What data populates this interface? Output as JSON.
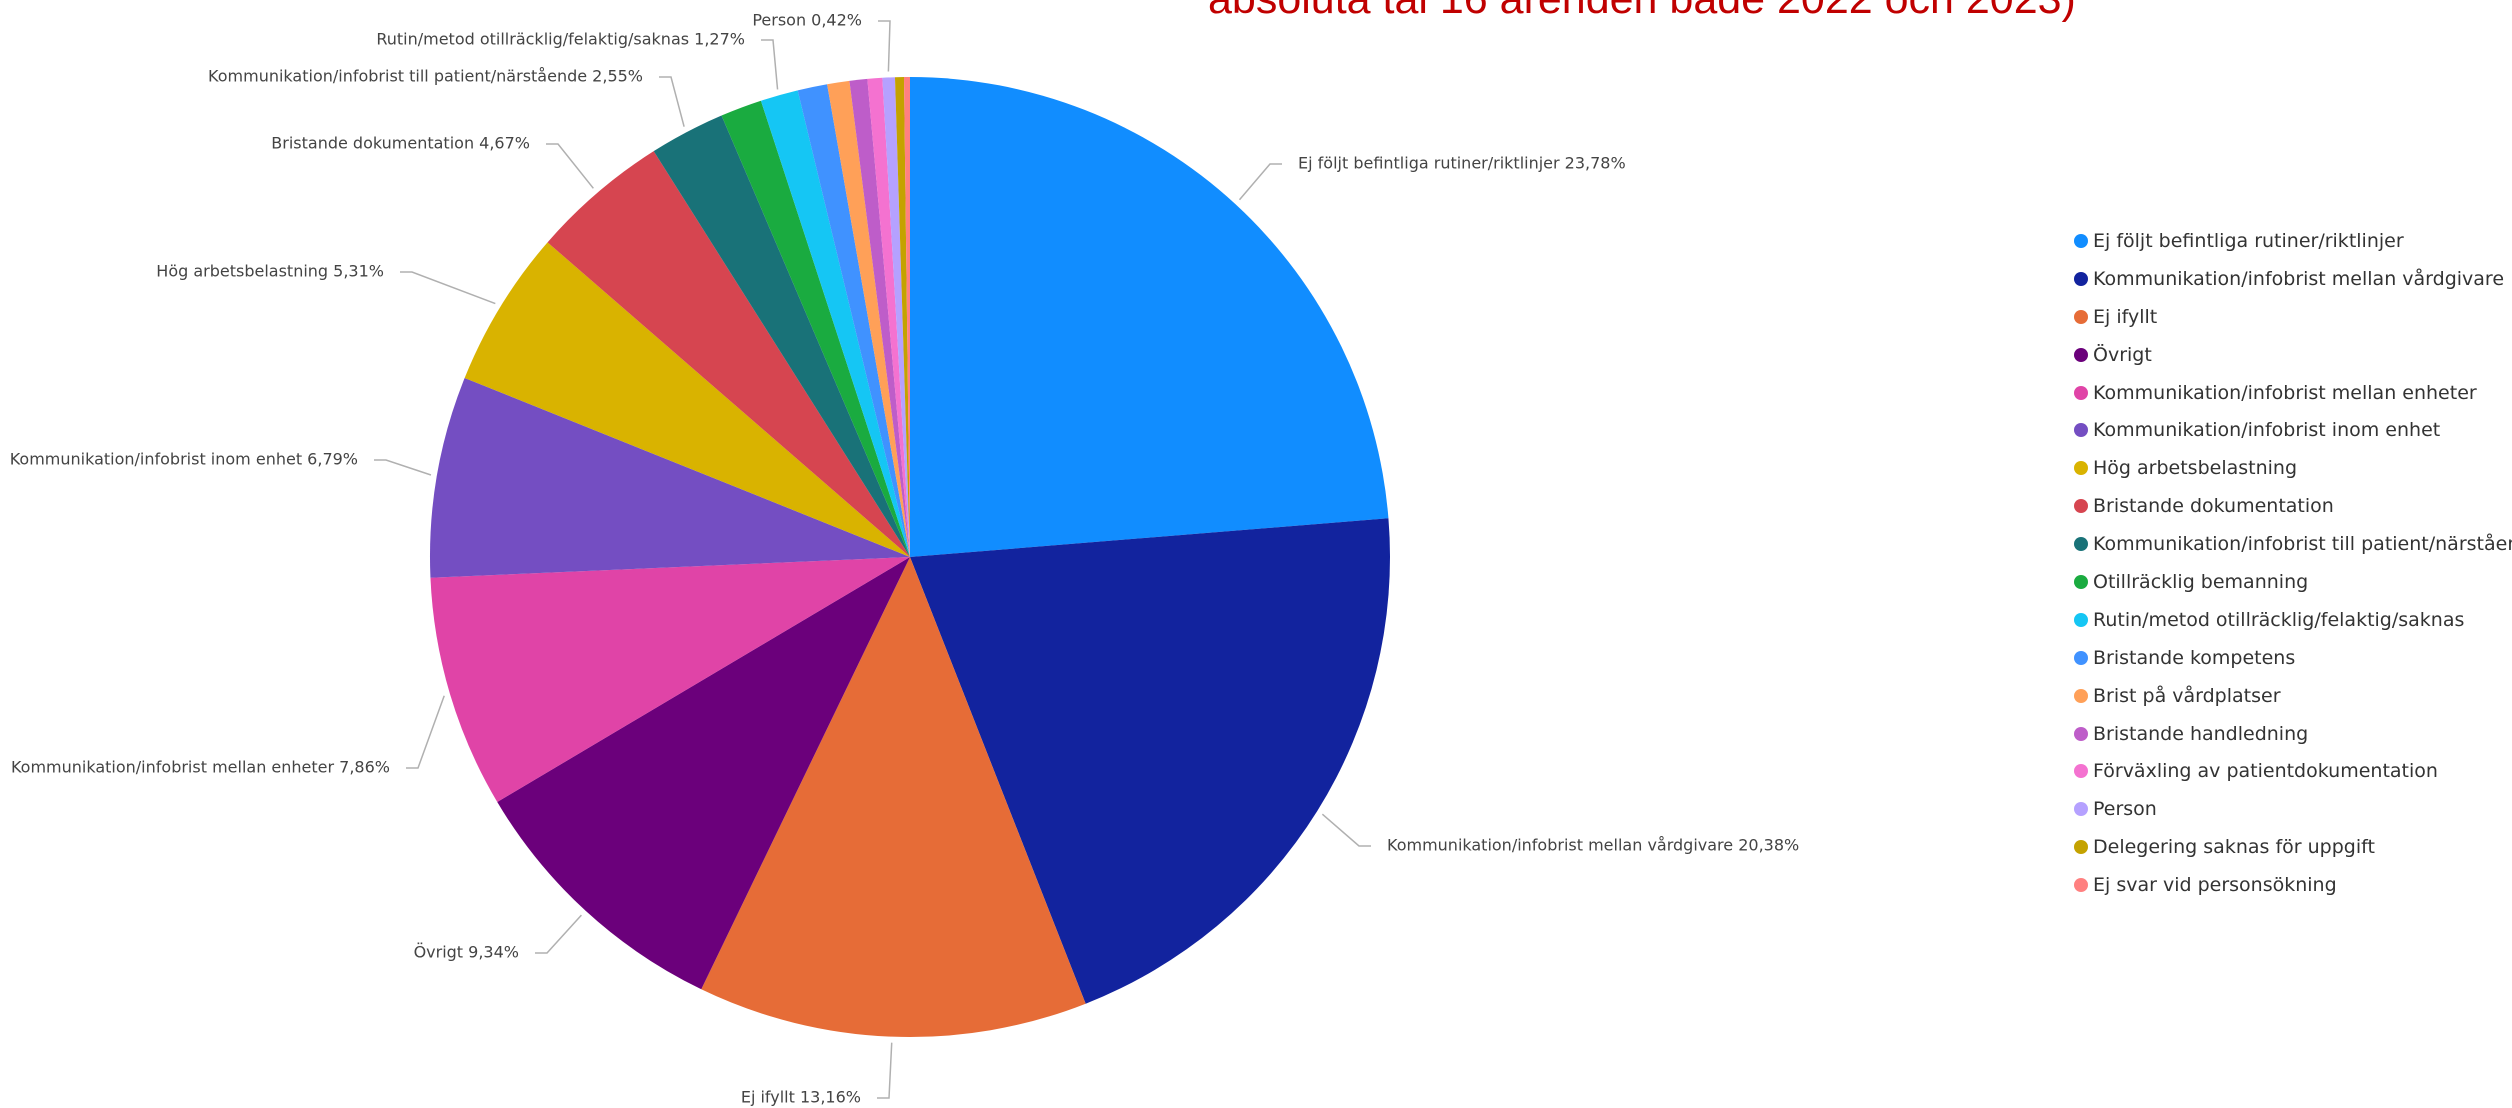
{
  "header_note": "absoluta tal 16 ärenden både 2022 och 2023)",
  "chart_data": {
    "type": "pie",
    "title": "",
    "start_angle_deg": 0,
    "direction": "clockwise",
    "legend_position": "right",
    "slices": [
      {
        "name": "Ej följt befintliga rutiner/riktlinjer",
        "value": 23.78,
        "label": "Ej följt befintliga rutiner/riktlinjer 23,78%",
        "color": "#118DFF",
        "show_label": true
      },
      {
        "name": "Kommunikation/infobrist mellan vårdgivare",
        "value": 20.38,
        "label": "Kommunikation/infobrist mellan vårdgivare 20,38%",
        "color": "#12239E",
        "show_label": true
      },
      {
        "name": "Ej ifyllt",
        "value": 13.16,
        "label": "Ej ifyllt 13,16%",
        "color": "#E66C37",
        "show_label": true
      },
      {
        "name": "Övrigt",
        "value": 9.34,
        "label": "Övrigt 9,34%",
        "color": "#6B007B",
        "show_label": true
      },
      {
        "name": "Kommunikation/infobrist mellan enheter",
        "value": 7.86,
        "label": "Kommunikation/infobrist mellan enheter 7,86%",
        "color": "#E044A7",
        "show_label": true
      },
      {
        "name": "Kommunikation/infobrist inom enhet",
        "value": 6.79,
        "label": "Kommunikation/infobrist inom enhet 6,79%",
        "color": "#744EC2",
        "show_label": true
      },
      {
        "name": "Hög arbetsbelastning",
        "value": 5.31,
        "label": "Hög arbetsbelastning 5,31%",
        "color": "#D9B300",
        "show_label": true
      },
      {
        "name": "Bristande dokumentation",
        "value": 4.67,
        "label": "Bristande dokumentation 4,67%",
        "color": "#D64550",
        "show_label": true
      },
      {
        "name": "Kommunikation/infobrist till patient/närstående",
        "value": 2.55,
        "label": "Kommunikation/infobrist till patient/närstående 2,55%",
        "color": "#197278",
        "show_label": true
      },
      {
        "name": "Otillräcklig bemanning",
        "value": 1.4,
        "label": "",
        "color": "#1AAB40",
        "show_label": false
      },
      {
        "name": "Rutin/metod otillräcklig/felaktig/saknas",
        "value": 1.27,
        "label": "Rutin/metod otillräcklig/felaktig/saknas 1,27%",
        "color": "#15C6F4",
        "show_label": true
      },
      {
        "name": "Bristande kompetens",
        "value": 1.0,
        "label": "",
        "color": "#4092FF",
        "show_label": false
      },
      {
        "name": "Brist på vårdplatser",
        "value": 0.75,
        "label": "",
        "color": "#FFA058",
        "show_label": false
      },
      {
        "name": "Bristande handledning",
        "value": 0.6,
        "label": "",
        "color": "#BE5DC9",
        "show_label": false
      },
      {
        "name": "Förväxling av patientdokumentation",
        "value": 0.5,
        "label": "",
        "color": "#F472D0",
        "show_label": false
      },
      {
        "name": "Person",
        "value": 0.42,
        "label": "Person 0,42%",
        "color": "#B5A1FF",
        "show_label": true
      },
      {
        "name": "Delegering saknas för uppgift",
        "value": 0.3,
        "label": "",
        "color": "#C4A200",
        "show_label": false
      },
      {
        "name": "Ej svar vid personsökning",
        "value": 0.2,
        "label": "",
        "color": "#FF8080",
        "show_label": false
      }
    ]
  }
}
